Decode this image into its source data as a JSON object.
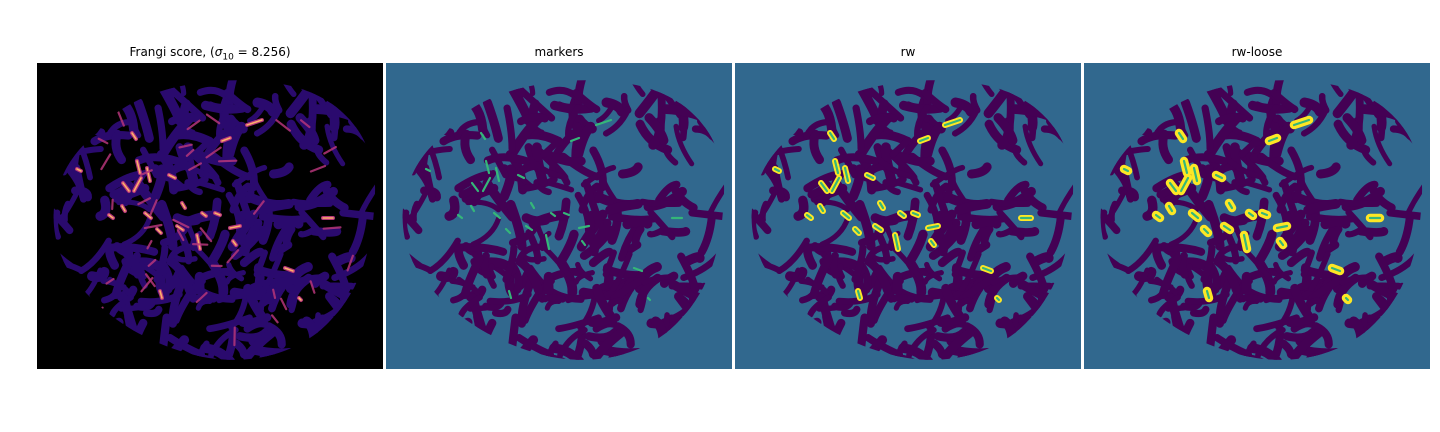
{
  "figure": {
    "panels": [
      {
        "id": "frangi",
        "title_prefix": "Frangi score, (",
        "title_math_sigma": "σ",
        "title_math_sub": "10",
        "title_math_rest": " = 8.256)",
        "colormap": "magma"
      },
      {
        "id": "markers",
        "title": "markers",
        "colormap": "viridis"
      },
      {
        "id": "rw",
        "title": "rw",
        "colormap": "viridis"
      },
      {
        "id": "rw-loose",
        "title": "rw-loose",
        "colormap": "viridis"
      }
    ],
    "colors": {
      "frangi_background": "#000000",
      "frangi_tissue": "#2a0a6e",
      "frangi_vessel_mid": "#b5367a",
      "frangi_vessel_high": "#fcb16a",
      "label_background": "#31688e",
      "label_tissue": "#440154",
      "label_marker": "#35b779",
      "label_segment": "#fde725"
    }
  }
}
